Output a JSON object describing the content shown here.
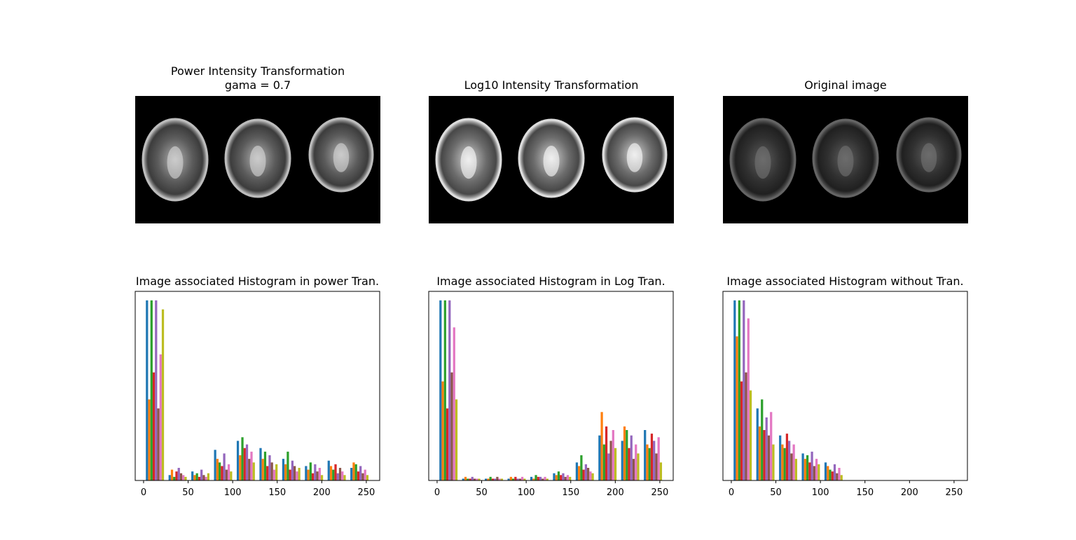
{
  "images": [
    {
      "title": [
        "Power Intensity Transformation",
        "gama = 0.7"
      ]
    },
    {
      "title": [
        "Log10 Intensity Transformation"
      ]
    },
    {
      "title": [
        "Original image"
      ]
    }
  ],
  "chart_data": [
    {
      "type": "histogram",
      "title": "Image associated Histogram in power Tran.",
      "bins": [
        0,
        25.5,
        51,
        76.5,
        102,
        127.5,
        153,
        178.5,
        204,
        229.5,
        255
      ],
      "xlim": [
        -9.4,
        265
      ],
      "xticks": [
        0,
        50,
        100,
        150,
        200,
        250
      ],
      "ylim": [
        0,
        105
      ],
      "series": [
        {
          "color": "#1f77b4",
          "values": [
            100,
            3,
            5,
            17,
            22,
            18,
            12,
            8,
            11,
            7
          ]
        },
        {
          "color": "#ff7f0e",
          "values": [
            45,
            6,
            3,
            12,
            14,
            12,
            9,
            6,
            8,
            10
          ]
        },
        {
          "color": "#2ca02c",
          "values": [
            100,
            2,
            4,
            10,
            24,
            16,
            16,
            10,
            6,
            9
          ]
        },
        {
          "color": "#d62728",
          "values": [
            60,
            5,
            2,
            8,
            18,
            8,
            6,
            4,
            9,
            5
          ]
        },
        {
          "color": "#9467bd",
          "values": [
            100,
            7,
            6,
            15,
            20,
            14,
            11,
            9,
            4,
            8
          ]
        },
        {
          "color": "#8c564b",
          "values": [
            40,
            4,
            3,
            6,
            12,
            10,
            8,
            5,
            7,
            4
          ]
        },
        {
          "color": "#e377c2",
          "values": [
            70,
            3,
            2,
            9,
            16,
            6,
            5,
            7,
            5,
            6
          ]
        },
        {
          "color": "#bcbd22",
          "values": [
            95,
            2,
            4,
            5,
            10,
            9,
            7,
            3,
            3,
            3
          ]
        }
      ]
    },
    {
      "type": "histogram",
      "title": "Image associated Histogram in Log Tran.",
      "bins": [
        0,
        25.5,
        51,
        76.5,
        102,
        127.5,
        153,
        178.5,
        204,
        229.5,
        255
      ],
      "xlim": [
        -9.4,
        265
      ],
      "xticks": [
        0,
        50,
        100,
        150,
        200,
        250
      ],
      "ylim": [
        0,
        105
      ],
      "series": [
        {
          "color": "#1f77b4",
          "values": [
            100,
            1,
            1,
            1,
            2,
            4,
            10,
            25,
            22,
            28
          ]
        },
        {
          "color": "#ff7f0e",
          "values": [
            55,
            2,
            1,
            2,
            1,
            3,
            8,
            38,
            30,
            20
          ]
        },
        {
          "color": "#2ca02c",
          "values": [
            100,
            1,
            2,
            1,
            3,
            5,
            14,
            20,
            28,
            18
          ]
        },
        {
          "color": "#d62728",
          "values": [
            40,
            1,
            1,
            2,
            2,
            3,
            6,
            30,
            18,
            26
          ]
        },
        {
          "color": "#9467bd",
          "values": [
            100,
            2,
            1,
            1,
            2,
            4,
            9,
            15,
            25,
            22
          ]
        },
        {
          "color": "#8c564b",
          "values": [
            60,
            1,
            2,
            1,
            1,
            2,
            7,
            22,
            12,
            15
          ]
        },
        {
          "color": "#e377c2",
          "values": [
            85,
            1,
            1,
            2,
            2,
            3,
            5,
            28,
            20,
            24
          ]
        },
        {
          "color": "#bcbd22",
          "values": [
            45,
            1,
            1,
            1,
            1,
            2,
            4,
            18,
            15,
            10
          ]
        }
      ]
    },
    {
      "type": "histogram",
      "title": "Image associated Histogram without Tran.",
      "bins": [
        0,
        25.5,
        51,
        76.5,
        102,
        127.5,
        153,
        178.5,
        204,
        229.5,
        255
      ],
      "xlim": [
        -9.4,
        265
      ],
      "xticks": [
        0,
        50,
        100,
        150,
        200,
        250
      ],
      "ylim": [
        0,
        105
      ],
      "series": [
        {
          "color": "#1f77b4",
          "values": [
            100,
            40,
            25,
            15,
            10,
            0,
            0,
            0,
            0,
            0
          ]
        },
        {
          "color": "#ff7f0e",
          "values": [
            80,
            30,
            20,
            12,
            8,
            0,
            0,
            0,
            0,
            0
          ]
        },
        {
          "color": "#2ca02c",
          "values": [
            100,
            45,
            18,
            14,
            6,
            0,
            0,
            0,
            0,
            0
          ]
        },
        {
          "color": "#d62728",
          "values": [
            55,
            28,
            26,
            10,
            5,
            0,
            0,
            0,
            0,
            0
          ]
        },
        {
          "color": "#9467bd",
          "values": [
            100,
            35,
            22,
            16,
            9,
            0,
            0,
            0,
            0,
            0
          ]
        },
        {
          "color": "#8c564b",
          "values": [
            60,
            25,
            15,
            8,
            4,
            0,
            0,
            0,
            0,
            0
          ]
        },
        {
          "color": "#e377c2",
          "values": [
            90,
            38,
            20,
            12,
            7,
            0,
            0,
            0,
            0,
            0
          ]
        },
        {
          "color": "#bcbd22",
          "values": [
            50,
            20,
            12,
            9,
            3,
            0,
            0,
            0,
            0,
            0
          ]
        }
      ]
    }
  ]
}
